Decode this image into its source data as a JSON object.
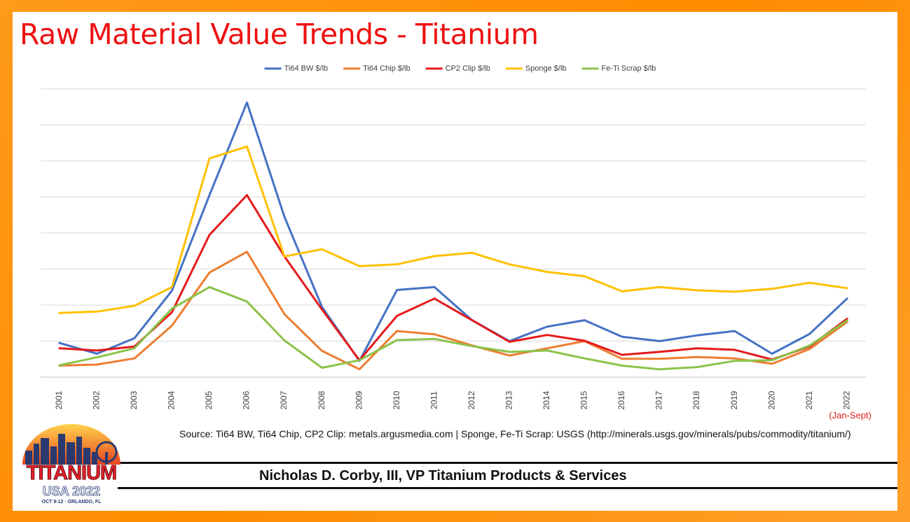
{
  "slide": {
    "title": "Raw Material Value Trends - Titanium",
    "note": "(Jan-Sept)",
    "source": "Source: Ti64 BW, Ti64 Chip, CP2 Clip: metals.argusmedia.com | Sponge, Fe-Ti Scrap: USGS (http://minerals.usgs.gov/minerals/pubs/commodity/titanium/)",
    "presenter": "Nicholas D. Corby, III, VP Titanium Products & Services"
  },
  "logo": {
    "word": "TITANIUM",
    "sub": "USA 2022",
    "date": "OCT 9-12 · ORLANDO, FL"
  },
  "chart_data": {
    "type": "line",
    "title": "",
    "xlabel": "",
    "ylabel": "",
    "ylim": [
      0,
      8
    ],
    "grid": true,
    "legend_position": "top-center",
    "categories": [
      "2001",
      "2002",
      "2003",
      "2004",
      "2005",
      "2006",
      "2007",
      "2008",
      "2009",
      "2010",
      "2011",
      "2012",
      "2013",
      "2014",
      "2015",
      "2016",
      "2017",
      "2018",
      "2019",
      "2020",
      "2021",
      "2022"
    ],
    "series": [
      {
        "name": "Ti64 BW $/lb",
        "color": "#4472c4",
        "values": [
          0.95,
          0.65,
          1.08,
          2.4,
          5.05,
          7.62,
          4.45,
          1.95,
          0.45,
          2.42,
          2.5,
          1.58,
          1.0,
          1.4,
          1.58,
          1.12,
          1.0,
          1.16,
          1.28,
          0.65,
          1.2,
          2.18
        ]
      },
      {
        "name": "Ti64 Chip $/lb",
        "color": "#ed7d31",
        "values": [
          0.32,
          0.35,
          0.52,
          1.43,
          2.9,
          3.48,
          1.75,
          0.73,
          0.22,
          1.28,
          1.19,
          0.88,
          0.6,
          0.8,
          1.0,
          0.51,
          0.51,
          0.56,
          0.52,
          0.37,
          0.78,
          1.53
        ]
      },
      {
        "name": "CP2 Clip $/lb",
        "color": "#e41a1c",
        "values": [
          0.8,
          0.74,
          0.85,
          1.8,
          3.95,
          5.05,
          3.35,
          1.88,
          0.47,
          1.7,
          2.18,
          1.58,
          0.98,
          1.17,
          1.01,
          0.62,
          0.7,
          0.8,
          0.76,
          0.49,
          0.85,
          1.62
        ]
      },
      {
        "name": "Sponge $/lb",
        "color": "#ffc000",
        "values": [
          1.78,
          1.82,
          1.98,
          2.5,
          6.07,
          6.4,
          3.35,
          3.55,
          3.08,
          3.13,
          3.36,
          3.45,
          3.13,
          2.92,
          2.8,
          2.38,
          2.5,
          2.41,
          2.37,
          2.45,
          2.62,
          2.47
        ]
      },
      {
        "name": "Fe-Ti Scrap $/lb",
        "color": "#8bc34a",
        "values": [
          0.33,
          0.55,
          0.8,
          1.9,
          2.5,
          2.1,
          1.02,
          0.26,
          0.47,
          1.03,
          1.06,
          0.86,
          0.7,
          0.74,
          0.52,
          0.32,
          0.22,
          0.28,
          0.45,
          0.47,
          0.88,
          1.57
        ]
      }
    ]
  }
}
